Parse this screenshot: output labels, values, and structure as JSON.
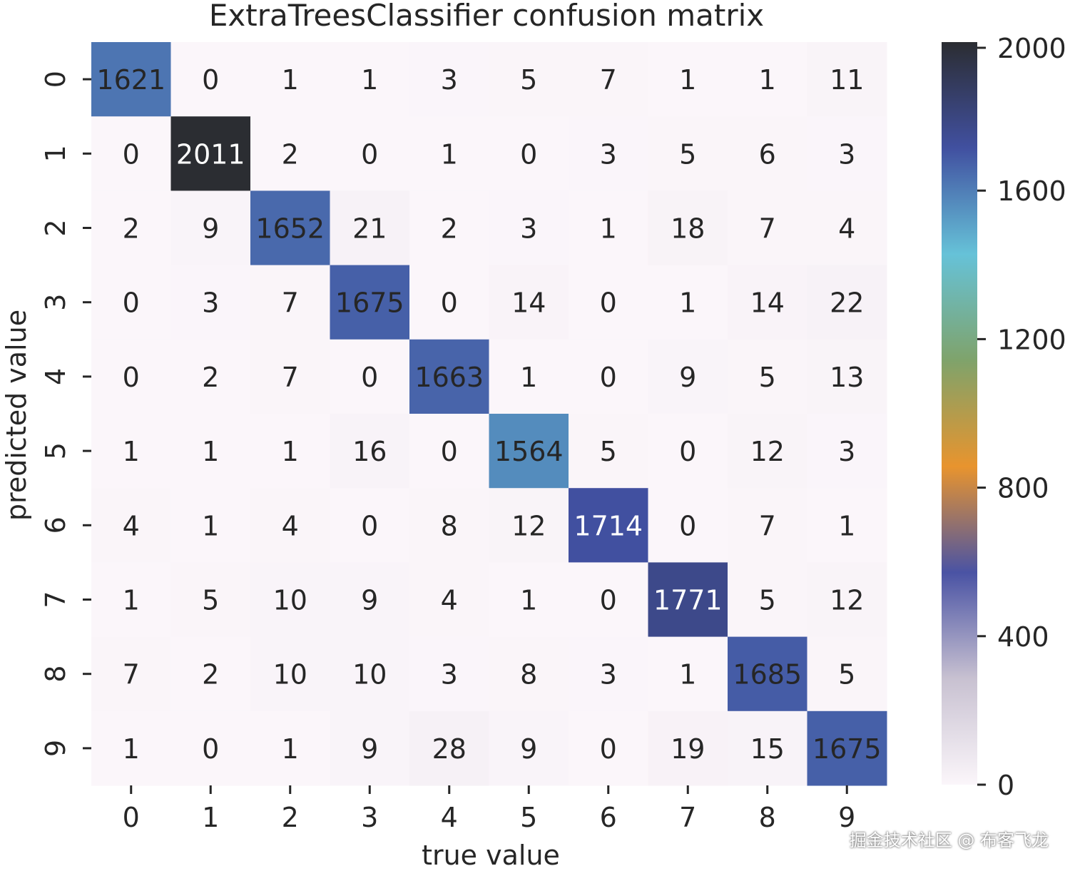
{
  "chart_data": {
    "type": "heatmap",
    "title": "ExtraTreesClassifier confusion matrix",
    "xlabel": "true value",
    "ylabel": "predicted value",
    "x_tick_labels": [
      "0",
      "1",
      "2",
      "3",
      "4",
      "5",
      "6",
      "7",
      "8",
      "9"
    ],
    "y_tick_labels": [
      "0",
      "1",
      "2",
      "3",
      "4",
      "5",
      "6",
      "7",
      "8",
      "9"
    ],
    "values": [
      [
        1621,
        0,
        1,
        1,
        3,
        5,
        7,
        1,
        1,
        11
      ],
      [
        0,
        2011,
        2,
        0,
        1,
        0,
        3,
        5,
        6,
        3
      ],
      [
        2,
        9,
        1652,
        21,
        2,
        3,
        1,
        18,
        7,
        4
      ],
      [
        0,
        3,
        7,
        1675,
        0,
        14,
        0,
        1,
        14,
        22
      ],
      [
        0,
        2,
        7,
        0,
        1663,
        1,
        0,
        9,
        5,
        13
      ],
      [
        1,
        1,
        1,
        16,
        0,
        1564,
        5,
        0,
        12,
        3
      ],
      [
        4,
        1,
        4,
        0,
        8,
        12,
        1714,
        0,
        7,
        1
      ],
      [
        1,
        5,
        10,
        9,
        4,
        1,
        0,
        1771,
        5,
        12
      ],
      [
        7,
        2,
        10,
        10,
        3,
        8,
        3,
        1,
        1685,
        5
      ],
      [
        1,
        0,
        1,
        9,
        28,
        9,
        0,
        19,
        15,
        1675
      ]
    ],
    "colorbar": {
      "range": [
        0,
        2000
      ],
      "ticks": [
        0,
        400,
        800,
        1200,
        1600,
        2000
      ],
      "tick_labels": [
        "0",
        "400",
        "800",
        "1200",
        "1600",
        "2000"
      ],
      "colors": [
        "#fbf6fa",
        "#c8c1d1",
        "#4a53a4",
        "#e8942e",
        "#7fa36b",
        "#66c2d8",
        "#4150a0",
        "#2b2d32"
      ]
    },
    "grid": false
  },
  "watermark": "掘金技术社区 @ 布客飞龙"
}
